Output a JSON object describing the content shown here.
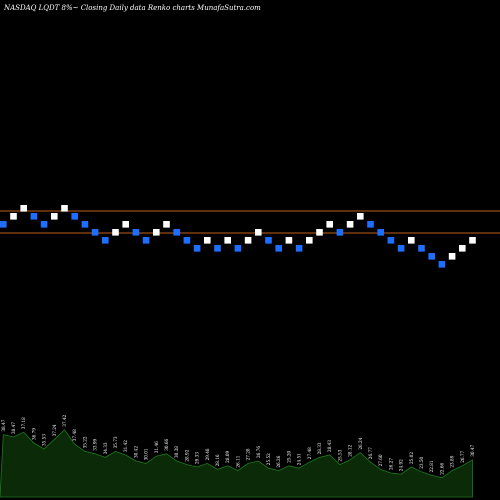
{
  "header": {
    "title": "NASDAQ LQDT 8%~  Closing Daily data  Renko  charts MunafaSutra.com"
  },
  "colors": {
    "background": "#000000",
    "up_brick": "#ffffff",
    "down_brick": "#1e6fff",
    "level_line": "#c0611a",
    "volume_area": "#0a2a08",
    "volume_line": "#1f7a1f"
  },
  "chart_data": {
    "type": "renko",
    "levels": [
      50,
      0
    ],
    "bricks": [
      {
        "dir": "down",
        "level": 47
      },
      {
        "dir": "up",
        "level": 49
      },
      {
        "dir": "up",
        "level": 51
      },
      {
        "dir": "down",
        "level": 49
      },
      {
        "dir": "down",
        "level": 47
      },
      {
        "dir": "up",
        "level": 49
      },
      {
        "dir": "up",
        "level": 51
      },
      {
        "dir": "down",
        "level": 49
      },
      {
        "dir": "down",
        "level": 47
      },
      {
        "dir": "down",
        "level": 45
      },
      {
        "dir": "down",
        "level": 43
      },
      {
        "dir": "up",
        "level": 45
      },
      {
        "dir": "up",
        "level": 47
      },
      {
        "dir": "down",
        "level": 45
      },
      {
        "dir": "down",
        "level": 43
      },
      {
        "dir": "up",
        "level": 45
      },
      {
        "dir": "up",
        "level": 47
      },
      {
        "dir": "down",
        "level": 45
      },
      {
        "dir": "down",
        "level": 43
      },
      {
        "dir": "down",
        "level": 41
      },
      {
        "dir": "up",
        "level": 43
      },
      {
        "dir": "down",
        "level": 41
      },
      {
        "dir": "up",
        "level": 43
      },
      {
        "dir": "down",
        "level": 41
      },
      {
        "dir": "up",
        "level": 43
      },
      {
        "dir": "up",
        "level": 45
      },
      {
        "dir": "down",
        "level": 43
      },
      {
        "dir": "down",
        "level": 41
      },
      {
        "dir": "up",
        "level": 43
      },
      {
        "dir": "down",
        "level": 41
      },
      {
        "dir": "up",
        "level": 43
      },
      {
        "dir": "up",
        "level": 45
      },
      {
        "dir": "up",
        "level": 47
      },
      {
        "dir": "down",
        "level": 45
      },
      {
        "dir": "up",
        "level": 47
      },
      {
        "dir": "up",
        "level": 49
      },
      {
        "dir": "down",
        "level": 47
      },
      {
        "dir": "down",
        "level": 45
      },
      {
        "dir": "down",
        "level": 43
      },
      {
        "dir": "down",
        "level": 41
      },
      {
        "dir": "up",
        "level": 43
      },
      {
        "dir": "down",
        "level": 41
      },
      {
        "dir": "down",
        "level": 39
      },
      {
        "dir": "down",
        "level": 37
      },
      {
        "dir": "up",
        "level": 39
      },
      {
        "dir": "up",
        "level": 41
      },
      {
        "dir": "up",
        "level": 43
      }
    ],
    "volume": [
      52,
      50,
      54,
      45,
      40,
      48,
      56,
      44,
      38,
      36,
      33,
      38,
      35,
      30,
      28,
      34,
      36,
      30,
      27,
      25,
      28,
      23,
      26,
      22,
      28,
      30,
      24,
      22,
      26,
      24,
      29,
      33,
      35,
      27,
      31,
      37,
      29,
      23,
      20,
      19,
      25,
      21,
      18,
      16,
      22,
      26,
      31
    ],
    "volume_labels": [
      "38.47",
      "38.47",
      "37.18",
      "36.79",
      "35.53",
      "37.24",
      "37.42",
      "37.48",
      "35.22",
      "33.99",
      "34.33",
      "35.73",
      "31.42",
      "30.42",
      "30.01",
      "31.46",
      "30.66",
      "30.38",
      "28.92",
      "29.33",
      "29.48",
      "28.16",
      "28.09",
      "26.11",
      "27.28",
      "26.76",
      "25.52",
      "26.26",
      "25.20",
      "24.51",
      "27.48",
      "28.33",
      "28.43",
      "25.53",
      "28.12",
      "26.24",
      "26.77",
      "27.60",
      "26.27",
      "24.92",
      "25.02",
      "23.50",
      "22.81",
      "22.66",
      "23.89",
      "26.77",
      "30.47"
    ]
  }
}
